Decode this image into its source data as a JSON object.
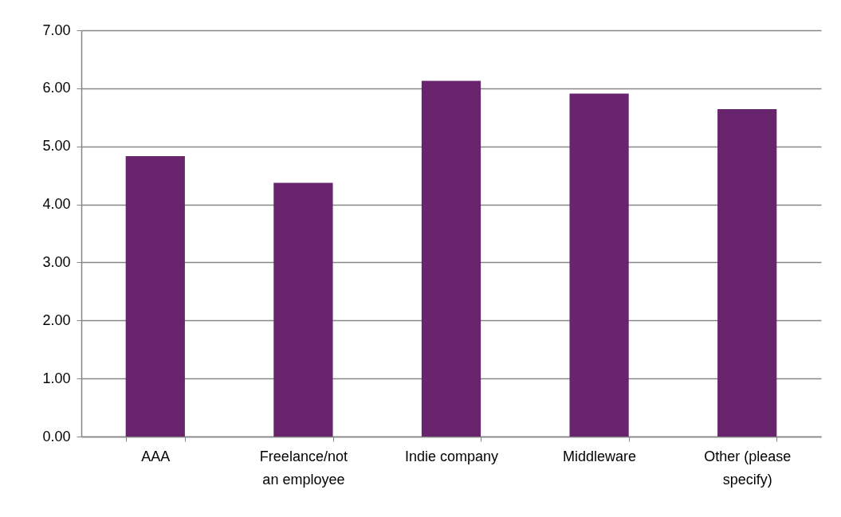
{
  "chart_data": {
    "type": "bar",
    "categories": [
      "AAA",
      "Freelance/not an employee",
      "Indie company",
      "Middleware",
      "Other (please specify)"
    ],
    "values": [
      4.83,
      4.37,
      6.13,
      5.91,
      5.64
    ],
    "color": "#68246d",
    "ylim": [
      0,
      7
    ],
    "yticks": [
      {
        "value": 0,
        "label": "0.00"
      },
      {
        "value": 1,
        "label": "1.00"
      },
      {
        "value": 2,
        "label": "2.00"
      },
      {
        "value": 3,
        "label": "3.00"
      },
      {
        "value": 4,
        "label": "4.00"
      },
      {
        "value": 5,
        "label": "5.00"
      },
      {
        "value": 6,
        "label": "6.00"
      },
      {
        "value": 7,
        "label": "7.00"
      }
    ],
    "grid": "y"
  }
}
